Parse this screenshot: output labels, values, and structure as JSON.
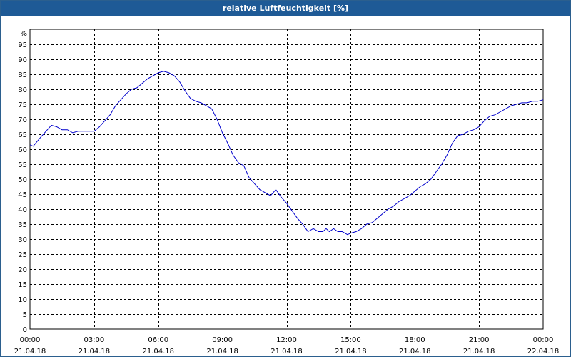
{
  "window": {
    "title": "relative Luftfeuchtigkeit [%]"
  },
  "chart_data": {
    "type": "line",
    "title": "relative Luftfeuchtigkeit [%]",
    "ylabel": "%",
    "ylim": [
      0,
      100
    ],
    "yticks": [
      0,
      5,
      10,
      15,
      20,
      25,
      30,
      35,
      40,
      45,
      50,
      55,
      60,
      65,
      70,
      75,
      80,
      85,
      90,
      95
    ],
    "xlim": [
      0,
      24
    ],
    "xticks": [
      {
        "time": "00:00",
        "date": "21.04.18"
      },
      {
        "time": "03:00",
        "date": "21.04.18"
      },
      {
        "time": "06:00",
        "date": "21.04.18"
      },
      {
        "time": "09:00",
        "date": "21.04.18"
      },
      {
        "time": "12:00",
        "date": "21.04.18"
      },
      {
        "time": "15:00",
        "date": "21.04.18"
      },
      {
        "time": "18:00",
        "date": "21.04.18"
      },
      {
        "time": "21:00",
        "date": "21.04.18"
      },
      {
        "time": "00:00",
        "date": "22.04.18"
      }
    ],
    "grid": true,
    "line_color": "#0000cc",
    "series": [
      {
        "x": [
          0,
          0.15,
          0.5,
          0.75,
          1.0,
          1.25,
          1.5,
          1.75,
          2.0,
          2.25,
          2.5,
          2.75,
          3.0,
          3.25,
          3.5,
          3.75,
          4.0,
          4.25,
          4.5,
          4.75,
          5.0,
          5.25,
          5.5,
          5.75,
          6.0,
          6.25,
          6.5,
          6.75,
          7.0,
          7.25,
          7.5,
          7.75,
          8.0,
          8.25,
          8.5,
          8.75,
          9.0,
          9.25,
          9.5,
          9.75,
          10.0,
          10.25,
          10.5,
          10.75,
          11.0,
          11.25,
          11.5,
          11.75,
          12.0,
          12.15,
          12.5,
          12.75,
          13.0,
          13.25,
          13.5,
          13.7,
          13.85,
          14.0,
          14.2,
          14.4,
          14.6,
          14.85,
          15.0,
          15.25,
          15.5,
          15.75,
          16.0,
          16.25,
          16.5,
          16.75,
          17.0,
          17.25,
          17.5,
          17.75,
          18.0,
          18.25,
          18.5,
          18.75,
          19.0,
          19.25,
          19.5,
          19.75,
          20.0,
          20.25,
          20.5,
          20.75,
          21.0,
          21.25,
          21.5,
          21.75,
          22.0,
          22.25,
          22.5,
          22.75,
          23.0,
          23.25,
          23.5,
          23.75,
          24.0
        ],
        "y": [
          61.5,
          61,
          64,
          66,
          68,
          67.5,
          66.5,
          66.5,
          65.5,
          66,
          66,
          66,
          66,
          67.5,
          69.5,
          71.5,
          74.5,
          76.5,
          78.5,
          80,
          80.5,
          82,
          83.5,
          84.5,
          85.5,
          86,
          85.5,
          84.5,
          82.5,
          79.5,
          77,
          76,
          75.5,
          74.5,
          73.5,
          70,
          65.5,
          62,
          58,
          55.5,
          54.5,
          50.5,
          48.5,
          46.5,
          45.5,
          44.5,
          46.5,
          44,
          42,
          40.5,
          37,
          35,
          32.5,
          33.5,
          32.5,
          32.5,
          33.5,
          32.5,
          33.5,
          32.5,
          32.5,
          31.5,
          32,
          32.5,
          33.5,
          35,
          35.5,
          37,
          38.5,
          40,
          41,
          42.5,
          43.5,
          44.5,
          46,
          47.5,
          48.5,
          50,
          52.5,
          55,
          58,
          62,
          64.5,
          65,
          66,
          66.5,
          67.5,
          69.5,
          71,
          71.5,
          72.5,
          73.5,
          74.5,
          75,
          75.5,
          75.5,
          76,
          76,
          76.5
        ]
      }
    ]
  }
}
